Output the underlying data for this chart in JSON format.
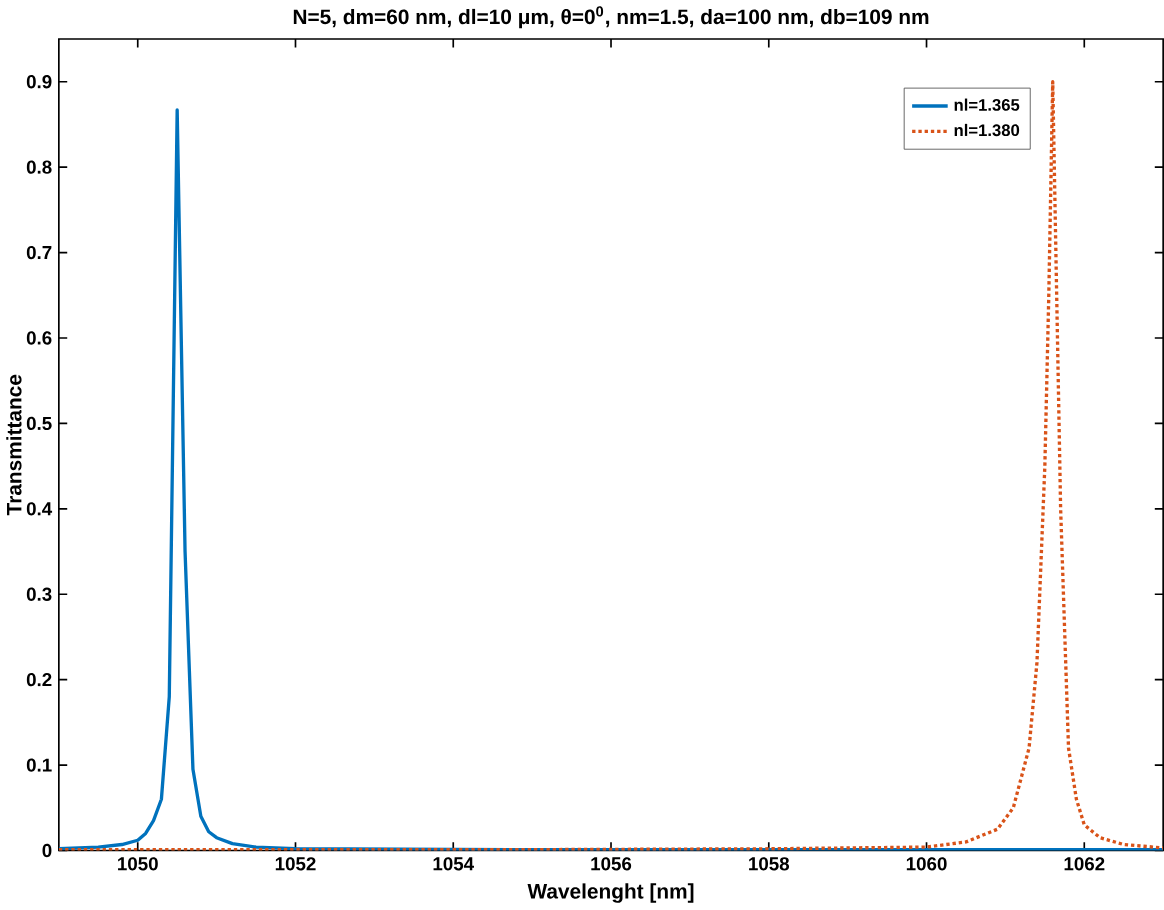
{
  "chart_data": {
    "type": "line",
    "title": "N=5, dm=60 nm, dl=10 μm, θ=0$^{0}$, nm=1.5, da=100 nm, db=109 nm",
    "xlabel": "Wavelenght [nm]",
    "ylabel": "Transmittance",
    "xlim": [
      1049,
      1063
    ],
    "ylim": [
      0,
      0.95
    ],
    "xticks": [
      1050,
      1052,
      1054,
      1056,
      1058,
      1060,
      1062
    ],
    "yticks": [
      0,
      0.1,
      0.2,
      0.3,
      0.4,
      0.5,
      0.6,
      0.7,
      0.8,
      0.9
    ],
    "legend": "top right",
    "grid": false,
    "series": [
      {
        "name": "nl=1.365",
        "color": "#0072bd",
        "line_style": "solid",
        "x": [
          1049,
          1049.5,
          1049.8,
          1050,
          1050.1,
          1050.2,
          1050.3,
          1050.4,
          1050.5,
          1050.6,
          1050.7,
          1050.8,
          1050.9,
          1051,
          1051.2,
          1051.5,
          1052,
          1055,
          1063
        ],
        "values": [
          0.002,
          0.004,
          0.007,
          0.012,
          0.02,
          0.035,
          0.06,
          0.18,
          0.867,
          0.35,
          0.095,
          0.04,
          0.022,
          0.015,
          0.008,
          0.004,
          0.002,
          0.001,
          0.001
        ]
      },
      {
        "name": "nl=1.380",
        "color": "#d95319",
        "line_style": "dotted",
        "x": [
          1049,
          1055,
          1058,
          1060,
          1060.5,
          1060.9,
          1061.1,
          1061.3,
          1061.4,
          1061.5,
          1061.55,
          1061.6,
          1061.65,
          1061.7,
          1061.8,
          1061.9,
          1062,
          1062.2,
          1062.5,
          1063
        ],
        "values": [
          0.001,
          0.001,
          0.002,
          0.004,
          0.01,
          0.025,
          0.05,
          0.12,
          0.22,
          0.45,
          0.65,
          0.9,
          0.65,
          0.4,
          0.12,
          0.06,
          0.03,
          0.015,
          0.007,
          0.003
        ]
      }
    ]
  }
}
